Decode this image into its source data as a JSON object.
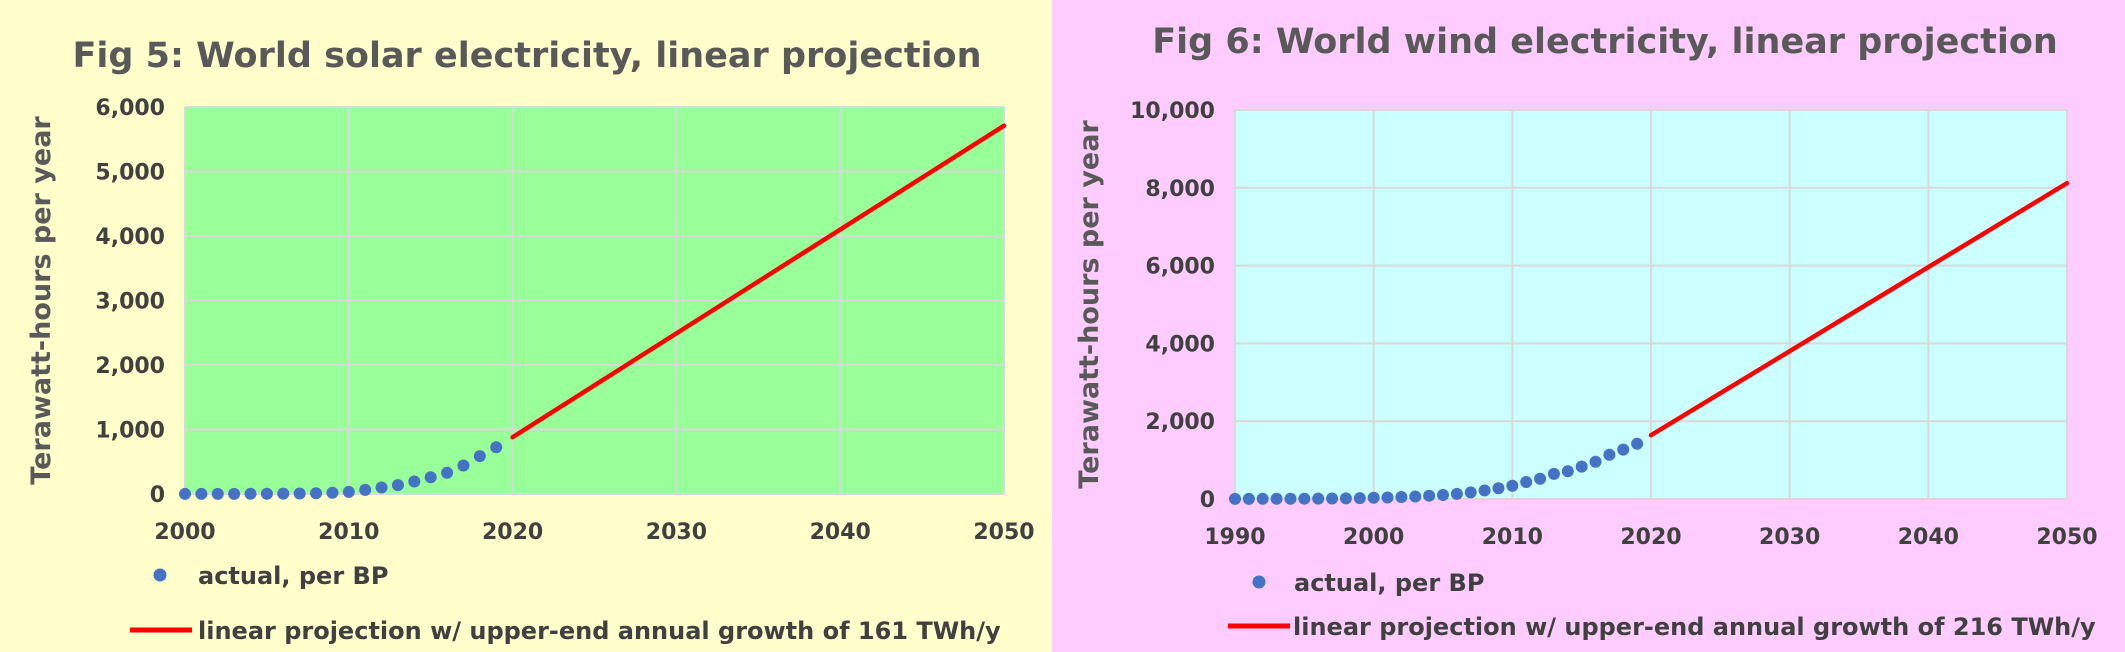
{
  "chart_data": [
    {
      "type": "scatter+line",
      "title": "Fig 5: World solar electricity, linear projection",
      "ylabel": "Terawatt-hours per year",
      "xlabel": "",
      "xlim": [
        2000,
        2050
      ],
      "ylim": [
        0,
        6000
      ],
      "xticks": [
        2000,
        2010,
        2020,
        2030,
        2040,
        2050
      ],
      "xtick_labels": [
        "2000",
        "2010",
        "2020",
        "2030",
        "2040",
        "2050"
      ],
      "yticks": [
        0,
        1000,
        2000,
        3000,
        4000,
        5000,
        6000
      ],
      "ytick_labels": [
        "0",
        "1,000",
        "2,000",
        "3,000",
        "4,000",
        "5,000",
        "6,000"
      ],
      "grid": true,
      "legend_position": "bottom",
      "plot_background": "#99ff99",
      "panel_background": "#ffffcc",
      "series": [
        {
          "name": "actual, per BP",
          "kind": "scatter",
          "color": "#4472c4",
          "x": [
            2000,
            2001,
            2002,
            2003,
            2004,
            2005,
            2006,
            2007,
            2008,
            2009,
            2010,
            2011,
            2012,
            2013,
            2014,
            2015,
            2016,
            2017,
            2018,
            2019
          ],
          "y": [
            1,
            1,
            2,
            2,
            3,
            4,
            6,
            8,
            12,
            20,
            32,
            64,
            100,
            137,
            193,
            259,
            329,
            442,
            587,
            724
          ]
        },
        {
          "name": "linear projection w/ upper-end annual growth of 161 TWh/y",
          "kind": "line",
          "color": "#ff0000",
          "x": [
            2020,
            2050
          ],
          "y": [
            880,
            5710
          ]
        }
      ]
    },
    {
      "type": "scatter+line",
      "title": "Fig 6: World wind electricity, linear projection",
      "ylabel": "Terawatt-hours per year",
      "xlabel": "",
      "xlim": [
        1990,
        2050
      ],
      "ylim": [
        0,
        10000
      ],
      "xticks": [
        1990,
        2000,
        2010,
        2020,
        2030,
        2040,
        2050
      ],
      "xtick_labels": [
        "1990",
        "2000",
        "2010",
        "2020",
        "2030",
        "2040",
        "2050"
      ],
      "yticks": [
        0,
        2000,
        4000,
        6000,
        8000,
        10000
      ],
      "ytick_labels": [
        "0",
        "2,000",
        "4,000",
        "6,000",
        "8,000",
        "10,000"
      ],
      "grid": true,
      "legend_position": "bottom",
      "plot_background": "#ccffff",
      "panel_background": "#ffccff",
      "series": [
        {
          "name": "actual, per BP",
          "kind": "scatter",
          "color": "#4472c4",
          "x": [
            1990,
            1991,
            1992,
            1993,
            1994,
            1995,
            1996,
            1997,
            1998,
            1999,
            2000,
            2001,
            2002,
            2003,
            2004,
            2005,
            2006,
            2007,
            2008,
            2009,
            2010,
            2011,
            2012,
            2013,
            2014,
            2015,
            2016,
            2017,
            2018,
            2019
          ],
          "y": [
            4,
            4,
            5,
            6,
            7,
            8,
            10,
            12,
            16,
            21,
            31,
            38,
            52,
            63,
            85,
            104,
            133,
            171,
            220,
            276,
            342,
            437,
            520,
            645,
            712,
            831,
            957,
            1138,
            1270,
            1420
          ]
        },
        {
          "name": "linear projection w/ upper-end annual growth of 216 TWh/y",
          "kind": "line",
          "color": "#ff0000",
          "x": [
            2020,
            2050
          ],
          "y": [
            1640,
            8120
          ]
        }
      ]
    }
  ]
}
